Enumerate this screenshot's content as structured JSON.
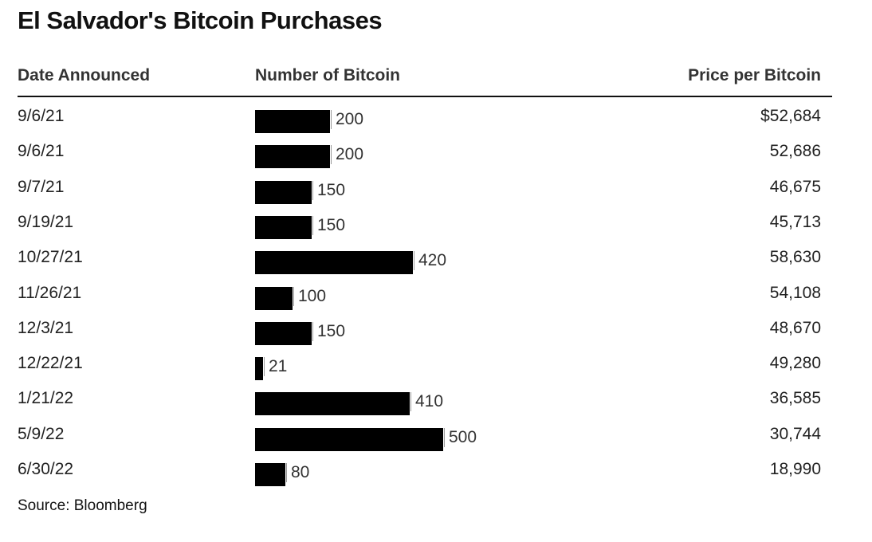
{
  "chart_data": {
    "type": "table",
    "title": "El Salvador's Bitcoin Purchases",
    "columns": [
      "Date Announced",
      "Number of Bitcoin",
      "Price per Bitcoin"
    ],
    "rows": [
      {
        "date": "9/6/21",
        "bitcoin": 200,
        "bitcoin_label": "200",
        "price": "$52,684"
      },
      {
        "date": "9/6/21",
        "bitcoin": 200,
        "bitcoin_label": "200",
        "price": "52,686"
      },
      {
        "date": "9/7/21",
        "bitcoin": 150,
        "bitcoin_label": "150",
        "price": "46,675"
      },
      {
        "date": "9/19/21",
        "bitcoin": 150,
        "bitcoin_label": "150",
        "price": "45,713"
      },
      {
        "date": "10/27/21",
        "bitcoin": 420,
        "bitcoin_label": "420",
        "price": "58,630"
      },
      {
        "date": "11/26/21",
        "bitcoin": 100,
        "bitcoin_label": "100",
        "price": "54,108"
      },
      {
        "date": "12/3/21",
        "bitcoin": 150,
        "bitcoin_label": "150",
        "price": "48,670"
      },
      {
        "date": "12/22/21",
        "bitcoin": 21,
        "bitcoin_label": "21",
        "price": "49,280"
      },
      {
        "date": "1/21/22",
        "bitcoin": 410,
        "bitcoin_label": "410",
        "price": "36,585"
      },
      {
        "date": "5/9/22",
        "bitcoin": 500,
        "bitcoin_label": "500",
        "price": "30,744"
      },
      {
        "date": "6/30/22",
        "bitcoin": 80,
        "bitcoin_label": "80",
        "price": "18,990"
      }
    ],
    "bar_color": "#000000",
    "source": "Source: Bloomberg"
  }
}
